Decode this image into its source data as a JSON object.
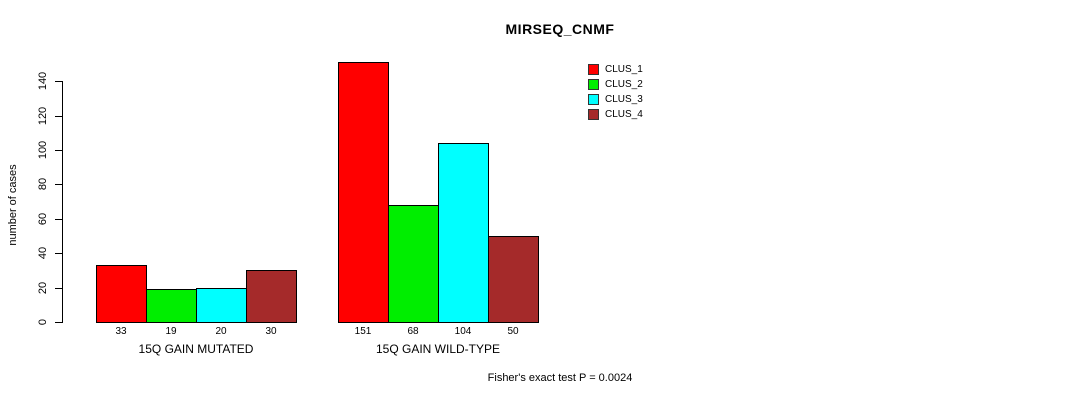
{
  "chart_data": {
    "type": "bar",
    "title": "MIRSEQ_CNMF",
    "ylabel": "number of cases",
    "xlabel": "",
    "categories": [
      "15Q GAIN MUTATED",
      "15Q GAIN WILD-TYPE"
    ],
    "series": [
      {
        "name": "CLUS_1",
        "color": "#FF0000",
        "values": [
          33,
          151
        ]
      },
      {
        "name": "CLUS_2",
        "color": "#00EE00",
        "values": [
          19,
          68
        ]
      },
      {
        "name": "CLUS_3",
        "color": "#00FFFF",
        "values": [
          20,
          104
        ]
      },
      {
        "name": "CLUS_4",
        "color": "#A52A2A",
        "values": [
          30,
          50
        ]
      }
    ],
    "bar_value_labels": [
      [
        "33",
        "19",
        "20",
        "30"
      ],
      [
        "151",
        "68",
        "104",
        "50"
      ]
    ],
    "ylim": [
      0,
      140
    ],
    "yticks": [
      0,
      20,
      40,
      60,
      80,
      100,
      120,
      140
    ],
    "grid": false,
    "legend_position": "top-right"
  },
  "footer": {
    "stat_text": "Fisher's exact test P = 0.0024"
  }
}
